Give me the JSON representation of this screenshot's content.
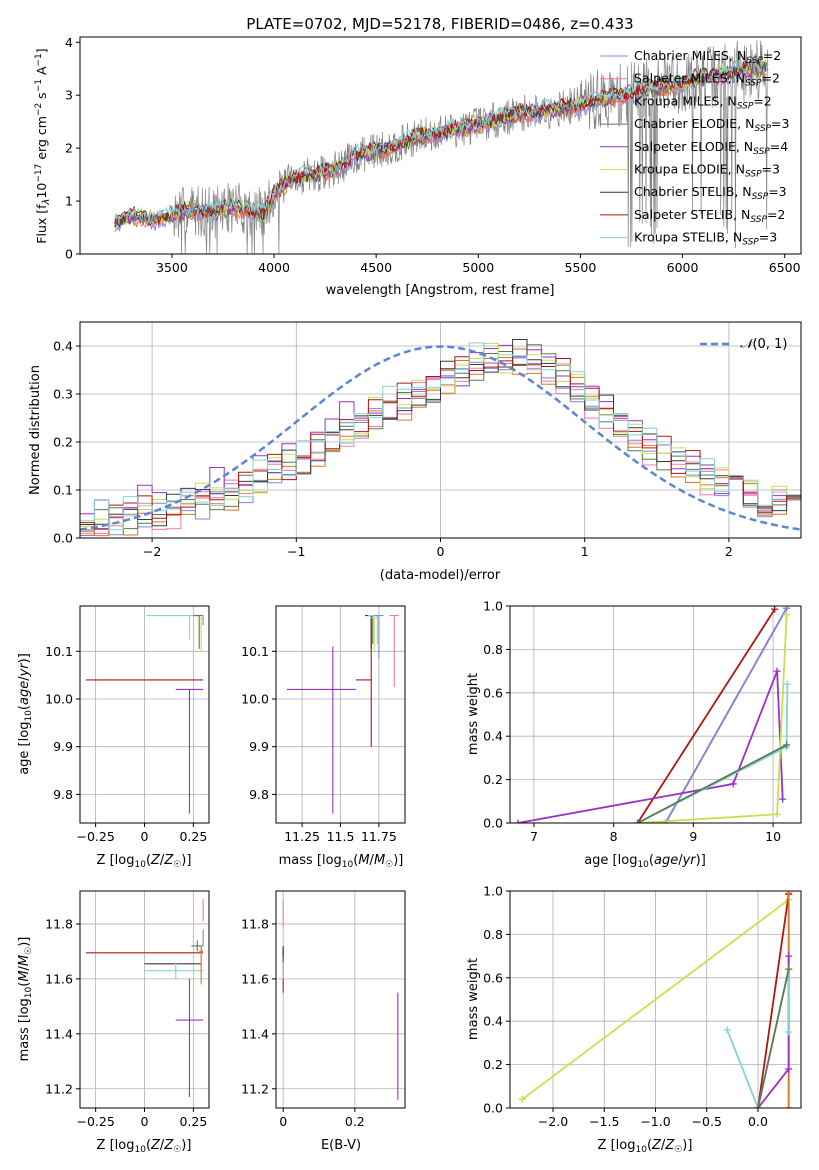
{
  "title": "PLATE=0702, MJD=52178, FIBERID=0486, z=0.433",
  "colors": {
    "Chabrier MILES": "#7b87e0",
    "Salpeter MILES": "#ef7aa5",
    "Kroupa MILES": "#d9772a",
    "Chabrier ELODIE": "#5c7a4f",
    "Salpeter ELODIE": "#9b30c6",
    "Kroupa ELODIE": "#c6e04e",
    "Chabrier STELIB": "#3a3a3a",
    "Salpeter STELIB": "#b01515",
    "Kroupa STELIB": "#84d2d6",
    "data": "#808080",
    "gaussian": "#5b86d6",
    "grid": "#b0b0b0"
  },
  "chart_data": [
    {
      "type": "line",
      "id": "spectrum",
      "title": "PLATE=0702, MJD=52178, FIBERID=0486, z=0.433",
      "xlabel": "wavelength [Angstrom, rest frame]",
      "ylabel": "Flux [f_λ 10^-17 erg cm^-2 s^-1 A^-1]",
      "xlim": [
        3050,
        6580
      ],
      "ylim": [
        0,
        4.1
      ],
      "xticks": [
        3500,
        4000,
        4500,
        5000,
        5500,
        6000,
        6500
      ],
      "yticks": [
        0,
        1,
        2,
        3,
        4
      ],
      "grid": false,
      "legend": "top-right",
      "series": [
        {
          "name": "Chabrier MILES, N_SSP=2"
        },
        {
          "name": "Salpeter MILES, N_SSP=2"
        },
        {
          "name": "Kroupa MILES, N_SSP=2"
        },
        {
          "name": "Chabrier ELODIE, N_SSP=3"
        },
        {
          "name": "Salpeter ELODIE, N_SSP=4"
        },
        {
          "name": "Kroupa ELODIE, N_SSP=3"
        },
        {
          "name": "Chabrier STELIB, N_SSP=3"
        },
        {
          "name": "Salpeter STELIB, N_SSP=2"
        },
        {
          "name": "Kroupa STELIB, N_SSP=3"
        }
      ],
      "model_envelope": {
        "x": [
          3220,
          3300,
          3400,
          3500,
          3600,
          3700,
          3800,
          3900,
          3950,
          4000,
          4100,
          4200,
          4300,
          4400,
          4500,
          4600,
          4700,
          4800,
          4900,
          5000,
          5200,
          5400,
          5600,
          5800,
          6000,
          6200,
          6420
        ],
        "y": [
          0.58,
          0.72,
          0.65,
          0.72,
          0.85,
          0.78,
          0.9,
          0.82,
          0.72,
          1.15,
          1.45,
          1.5,
          1.6,
          1.85,
          1.95,
          2.05,
          2.2,
          2.3,
          2.35,
          2.45,
          2.65,
          2.75,
          2.9,
          3.1,
          3.25,
          3.4,
          3.55
        ]
      }
    },
    {
      "type": "step",
      "id": "residuals",
      "xlabel": "(data-model)/error",
      "ylabel": "Normed distribution",
      "xlim": [
        -2.5,
        2.5
      ],
      "ylim": [
        0,
        0.45
      ],
      "xticks": [
        -2,
        -1,
        0,
        1,
        2
      ],
      "yticks": [
        0.0,
        0.1,
        0.2,
        0.3,
        0.4
      ],
      "grid": true,
      "legend": "top-right",
      "legend_entry": "N(0, 1)",
      "bin_width": 0.1,
      "base_curve_x": [
        -2.5,
        -2.0,
        -1.5,
        -1.0,
        -0.5,
        0.0,
        0.3,
        0.6,
        0.9,
        1.2,
        1.5,
        2.0,
        2.5
      ],
      "base_curve_y": [
        0.025,
        0.05,
        0.09,
        0.15,
        0.25,
        0.32,
        0.37,
        0.38,
        0.33,
        0.25,
        0.18,
        0.11,
        0.07
      ]
    },
    {
      "type": "errorbar",
      "id": "age_vs_Z",
      "xlabel": "Z [log10(Z/Z☉)]",
      "ylabel": "age  [log10(age/yr)]",
      "xlim": [
        -0.33,
        0.33
      ],
      "ylim": [
        9.74,
        10.195
      ],
      "xticks": [
        -0.25,
        0.0,
        0.25
      ],
      "yticks": [
        9.8,
        9.9,
        10.0,
        10.1
      ],
      "grid": true,
      "points": [
        {
          "model": "Salpeter STELIB",
          "x": 0.0,
          "xerr": [
            0.3,
            0.3
          ],
          "y": 10.04,
          "yerr": [
            0,
            0
          ]
        },
        {
          "model": "Salpeter ELODIE",
          "x": 0.23,
          "xerr": [
            0.07,
            0.07
          ],
          "y": 10.02,
          "yerr": [
            0.26,
            0
          ]
        },
        {
          "model": "Kroupa STELIB",
          "x": 0.23,
          "xerr": [
            0.22,
            0.07
          ],
          "y": 10.175,
          "yerr": [
            0.05,
            0
          ]
        },
        {
          "model": "Chabrier ELODIE",
          "x": 0.28,
          "xerr": [
            0.03,
            0.02
          ],
          "y": 10.175,
          "yerr": [
            0.07,
            0
          ]
        },
        {
          "model": "Kroupa ELODIE",
          "x": 0.29,
          "xerr": [
            0.02,
            0.01
          ],
          "y": 10.17,
          "yerr": [
            0.07,
            0
          ]
        },
        {
          "model": "Chabrier MILES",
          "x": 0.3,
          "xerr": [
            0,
            0
          ],
          "y": 10.175,
          "yerr": [
            0.02,
            0
          ]
        },
        {
          "model": "Salpeter MILES",
          "x": 0.3,
          "xerr": [
            0,
            0
          ],
          "y": 10.175,
          "yerr": [
            0.02,
            0
          ]
        }
      ]
    },
    {
      "type": "errorbar",
      "id": "age_vs_mass",
      "xlabel": "mass [log10(M/M☉)]",
      "ylabel": "",
      "xlim": [
        11.08,
        11.92
      ],
      "ylim": [
        9.74,
        10.195
      ],
      "xticks": [
        11.25,
        11.5,
        11.75
      ],
      "yticks": [
        9.8,
        9.9,
        10.0,
        10.1
      ],
      "grid": true,
      "points": [
        {
          "model": "Salpeter ELODIE",
          "x": 11.45,
          "xerr": [
            0.3,
            0.15
          ],
          "y": 10.02,
          "yerr": [
            0.26,
            0.09
          ]
        },
        {
          "model": "Salpeter STELIB",
          "x": 11.7,
          "xerr": [
            0.1,
            0
          ],
          "y": 10.04,
          "yerr": [
            0.14,
            0.13
          ]
        },
        {
          "model": "Chabrier STELIB",
          "x": 11.7,
          "xerr": [
            0.04,
            0.02
          ],
          "y": 10.175,
          "yerr": [
            0.07,
            0
          ]
        },
        {
          "model": "Chabrier ELODIE",
          "x": 11.71,
          "xerr": [
            0.03,
            0.03
          ],
          "y": 10.175,
          "yerr": [
            0.06,
            0
          ]
        },
        {
          "model": "Kroupa ELODIE",
          "x": 11.72,
          "xerr": [
            0.02,
            0.02
          ],
          "y": 10.17,
          "yerr": [
            0.07,
            0
          ]
        },
        {
          "model": "Kroupa STELIB",
          "x": 11.74,
          "xerr": [
            0.06,
            0.02
          ],
          "y": 10.175,
          "yerr": [
            0.06,
            0
          ]
        },
        {
          "model": "Chabrier MILES",
          "x": 11.75,
          "xerr": [
            0.03,
            0.03
          ],
          "y": 10.175,
          "yerr": [
            0.09,
            0
          ]
        },
        {
          "model": "Salpeter MILES",
          "x": 11.85,
          "xerr": [
            0.03,
            0.03
          ],
          "y": 10.175,
          "yerr": [
            0.15,
            0
          ]
        }
      ]
    },
    {
      "type": "line",
      "id": "weight_vs_age",
      "xlabel": "age  [log10(age/yr)]",
      "ylabel": "mass weight",
      "xlim": [
        6.7,
        10.35
      ],
      "ylim": [
        0,
        1
      ],
      "xticks": [
        7,
        8,
        9,
        10
      ],
      "yticks": [
        0.0,
        0.2,
        0.4,
        0.6,
        0.8,
        1.0
      ],
      "grid": true,
      "series": [
        {
          "model": "Salpeter STELIB",
          "x": [
            8.3,
            10.02
          ],
          "y": [
            0,
            0.985
          ]
        },
        {
          "model": "Kroupa MILES",
          "x": [
            8.65,
            10.17
          ],
          "y": [
            0,
            0.99
          ]
        },
        {
          "model": "Chabrier MILES",
          "x": [
            8.65,
            10.17
          ],
          "y": [
            0,
            0.99
          ]
        },
        {
          "model": "Salpeter ELODIE",
          "x": [
            6.8,
            9.5,
            10.05,
            10.12
          ],
          "y": [
            0,
            0.18,
            0.7,
            0.11
          ]
        },
        {
          "model": "Kroupa ELODIE",
          "x": [
            8.3,
            10.05,
            10.17
          ],
          "y": [
            0,
            0.04,
            0.96
          ]
        },
        {
          "model": "Kroupa STELIB",
          "x": [
            8.3,
            10.17,
            10.18
          ],
          "y": [
            0,
            0.35,
            0.64
          ]
        },
        {
          "model": "Chabrier ELODIE",
          "x": [
            8.3,
            10.17
          ],
          "y": [
            0,
            0.36
          ]
        }
      ]
    },
    {
      "type": "errorbar",
      "id": "mass_vs_Z",
      "xlabel": "Z [log10(Z/Z☉)]",
      "ylabel": "mass [log10(M/M☉)]",
      "xlim": [
        -0.33,
        0.33
      ],
      "ylim": [
        11.13,
        11.92
      ],
      "xticks": [
        -0.25,
        0.0,
        0.25
      ],
      "yticks": [
        11.2,
        11.4,
        11.6,
        11.8
      ],
      "grid": true,
      "points": [
        {
          "model": "Salpeter STELIB",
          "x": 0.0,
          "xerr": [
            0.3,
            0.3
          ],
          "y": 11.695,
          "yerr": [
            0,
            0
          ]
        },
        {
          "model": "Chabrier STELIB",
          "x": 0.15,
          "xerr": [
            0.15,
            0.14
          ],
          "y": 11.655,
          "yerr": [
            0,
            0
          ]
        },
        {
          "model": "Kroupa STELIB",
          "x": 0.16,
          "xerr": [
            0.16,
            0.14
          ],
          "y": 11.63,
          "yerr": [
            0.03,
            0.03
          ]
        },
        {
          "model": "Chabrier ELODIE",
          "x": 0.27,
          "xerr": [
            0.03,
            0.03
          ],
          "y": 11.72,
          "yerr": [
            0.02,
            0.02
          ]
        },
        {
          "model": "Salpeter ELODIE",
          "x": 0.23,
          "xerr": [
            0.07,
            0.07
          ],
          "y": 11.45,
          "yerr": [
            0.28,
            0.15
          ]
        },
        {
          "model": "Kroupa ELODIE",
          "x": 0.29,
          "xerr": [
            0.01,
            0.01
          ],
          "y": 11.7,
          "yerr": [
            0.07,
            0.02
          ]
        },
        {
          "model": "Kroupa MILES",
          "x": 0.29,
          "xerr": [
            0.01,
            0.01
          ],
          "y": 11.7,
          "yerr": [
            0.12,
            0.02
          ]
        },
        {
          "model": "Salpeter MILES",
          "x": 0.3,
          "xerr": [
            0,
            0
          ],
          "y": 11.84,
          "yerr": [
            0.03,
            0.05
          ]
        },
        {
          "model": "Chabrier MILES",
          "x": 0.3,
          "xerr": [
            0,
            0
          ],
          "y": 11.75,
          "yerr": [
            0.03,
            0.03
          ]
        }
      ]
    },
    {
      "type": "errorbar",
      "id": "mass_vs_ebv",
      "xlabel": "E(B-V)",
      "ylabel": "",
      "xlim": [
        -0.02,
        0.34
      ],
      "ylim": [
        11.13,
        11.92
      ],
      "xticks": [
        0.0,
        0.2
      ],
      "yticks": [
        11.2,
        11.4,
        11.6,
        11.8
      ],
      "grid": true,
      "points": [
        {
          "model": "Salpeter MILES",
          "x": 0.0,
          "xerr": [
            0,
            0
          ],
          "y": 11.84,
          "yerr": [
            0.05,
            0.05
          ]
        },
        {
          "model": "Salpeter STELIB",
          "x": 0.0,
          "xerr": [
            0,
            0
          ],
          "y": 11.65,
          "yerr": [
            0.1,
            0.06
          ]
        },
        {
          "model": "Chabrier STELIB",
          "x": 0.0,
          "xerr": [
            0,
            0
          ],
          "y": 11.7,
          "yerr": [
            0.02,
            0.02
          ]
        },
        {
          "model": "Kroupa STELIB",
          "x": 0.0,
          "xerr": [
            0,
            0
          ],
          "y": 11.63,
          "yerr": [
            0.03,
            0.03
          ]
        },
        {
          "model": "Salpeter ELODIE",
          "x": 0.32,
          "xerr": [
            0,
            0
          ],
          "y": 11.35,
          "yerr": [
            0.19,
            0.2
          ]
        }
      ]
    },
    {
      "type": "line",
      "id": "weight_vs_Z",
      "xlabel": "Z [log10(Z/Z☉)]",
      "ylabel": "mass weight",
      "xlim": [
        -2.42,
        0.42
      ],
      "ylim": [
        0,
        1
      ],
      "xticks": [
        -2.0,
        -1.5,
        -1.0,
        -0.5,
        0.0
      ],
      "yticks": [
        0.0,
        0.2,
        0.4,
        0.6,
        0.8,
        1.0
      ],
      "grid": true,
      "series": [
        {
          "model": "Kroupa ELODIE",
          "x": [
            -2.3,
            0.3,
            0.3
          ],
          "y": [
            0.04,
            0.96,
            0
          ]
        },
        {
          "model": "Salpeter STELIB",
          "x": [
            0.0,
            0.3
          ],
          "y": [
            0,
            0.985
          ]
        },
        {
          "model": "Kroupa MILES",
          "x": [
            0.3,
            0.3
          ],
          "y": [
            0,
            0.99
          ]
        },
        {
          "model": "Salpeter ELODIE",
          "x": [
            0.0,
            0.3,
            0.3
          ],
          "y": [
            0,
            0.18,
            0.7
          ]
        },
        {
          "model": "Kroupa STELIB",
          "x": [
            -0.3,
            0.0,
            0.3,
            0.3
          ],
          "y": [
            0.36,
            0,
            0.64,
            0.35
          ]
        },
        {
          "model": "Chabrier ELODIE",
          "x": [
            0.0,
            0.3
          ],
          "y": [
            0,
            0.64
          ]
        }
      ]
    }
  ]
}
